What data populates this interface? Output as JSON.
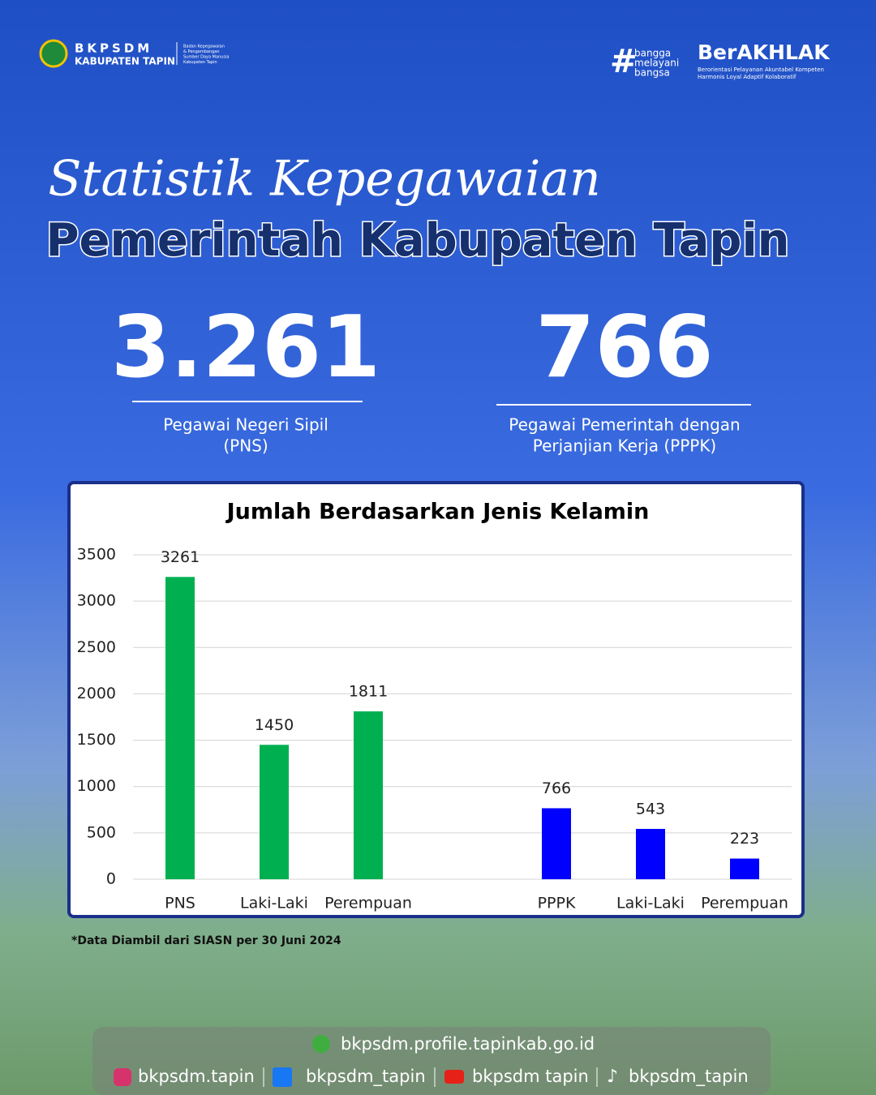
{
  "header": {
    "org": "BKPSDM",
    "region": "KABUPATEN TAPIN",
    "org_full": [
      "Badan Kepegawaian",
      "& Pengembangan",
      "Sumber Daya Manusia",
      "Kabupaten Tapin"
    ],
    "tagline": [
      "bangga",
      "melayani",
      "bangsa"
    ],
    "brand": "BerAKHLAK",
    "brand_sub": [
      "Berorientasi Pelayanan Akuntabel Kompeten",
      "Harmonis Loyal Adaptif Kolaboratif"
    ]
  },
  "title": {
    "script": "Statistik Kepegawaian",
    "main": "Pemerintah Kabupaten Tapin"
  },
  "stats": [
    {
      "value": "3.261",
      "label": [
        "Pegawai Negeri Sipil",
        "(PNS)"
      ]
    },
    {
      "value": "766",
      "label": [
        "Pegawai Pemerintah dengan",
        "Perjanjian Kerja (PPPK)"
      ]
    }
  ],
  "chart_data": {
    "type": "bar",
    "title": "Jumlah Berdasarkan Jenis Kelamin",
    "categories": [
      "PNS",
      "Laki-Laki",
      "Perempuan",
      null,
      "PPPK",
      "Laki-Laki",
      "Perempuan"
    ],
    "values": [
      3261,
      1450,
      1811,
      null,
      766,
      543,
      223
    ],
    "colors": [
      "#00b050",
      "#00b050",
      "#00b050",
      null,
      "#0000ff",
      "#0000ff",
      "#0000ff"
    ],
    "ylim": [
      0,
      3500
    ],
    "yticks": [
      0,
      500,
      1000,
      1500,
      2000,
      2500,
      3000,
      3500
    ],
    "grid": true
  },
  "note": "*Data Diambil dari SIASN per 30 Juni 2024",
  "footer": {
    "website": "bkpsdm.profile.tapinkab.go.id",
    "instagram": "bkpsdm.tapin",
    "facebook": "bkpsdm_tapin",
    "youtube": "bkpsdm tapin",
    "tiktok": "bkpsdm_tapin"
  }
}
